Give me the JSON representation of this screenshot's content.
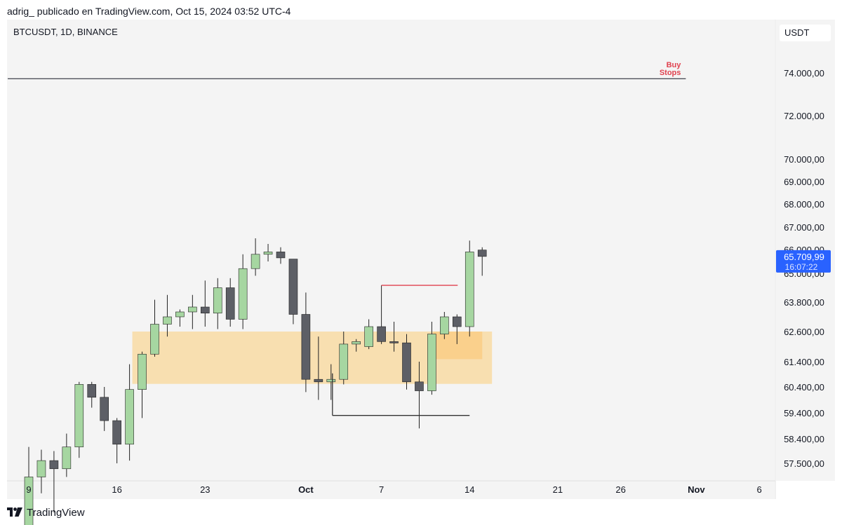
{
  "header": {
    "caption": "adrig_ publicado en TradingView.com, Oct 15, 2024 03:52 UTC-4"
  },
  "footer": {
    "brand": "TradingView",
    "logo": "tradingview-logo"
  },
  "chart_data": {
    "type": "candlestick",
    "symbol": "BTCUSDT, 1D, BINANCE",
    "currency": "USDT",
    "colors": {
      "up": "#a6d6a1",
      "down": "#5d5f66",
      "zone": "#f9d89a",
      "zone_inner": "#fbc97e",
      "price_badge": "#2962ff",
      "buy_stops": "#e0424f"
    },
    "y_ticks": [
      {
        "value": 74000,
        "label": "74.000,00"
      },
      {
        "value": 72000,
        "label": "72.000,00"
      },
      {
        "value": 70000,
        "label": "70.000,00"
      },
      {
        "value": 69000,
        "label": "69.000,00"
      },
      {
        "value": 68000,
        "label": "68.000,00"
      },
      {
        "value": 67000,
        "label": "67.000,00"
      },
      {
        "value": 66000,
        "label": "66.000,00"
      },
      {
        "value": 65000,
        "label": "65.000,00"
      },
      {
        "value": 63800,
        "label": "63.800,00"
      },
      {
        "value": 62600,
        "label": "62.600,00"
      },
      {
        "value": 61400,
        "label": "61.400,00"
      },
      {
        "value": 60400,
        "label": "60.400,00"
      },
      {
        "value": 59400,
        "label": "59.400,00"
      },
      {
        "value": 58400,
        "label": "58.400,00"
      },
      {
        "value": 57500,
        "label": "57.500,00"
      }
    ],
    "x_ticks": [
      {
        "date": "2024-09-09",
        "label": "9",
        "bold": false
      },
      {
        "date": "2024-09-16",
        "label": "16",
        "bold": false
      },
      {
        "date": "2024-09-23",
        "label": "23",
        "bold": false
      },
      {
        "date": "2024-10-01",
        "label": "Oct",
        "bold": true
      },
      {
        "date": "2024-10-07",
        "label": "7",
        "bold": false
      },
      {
        "date": "2024-10-14",
        "label": "14",
        "bold": false
      },
      {
        "date": "2024-10-21",
        "label": "21",
        "bold": false
      },
      {
        "date": "2024-10-26",
        "label": "26",
        "bold": false
      },
      {
        "date": "2024-11-01",
        "label": "Nov",
        "bold": true
      },
      {
        "date": "2024-11-06",
        "label": "6",
        "bold": false
      }
    ],
    "candles": [
      {
        "date": "2024-09-09",
        "open": 54800,
        "high": 58100,
        "low": 54600,
        "close": 57000
      },
      {
        "date": "2024-09-10",
        "open": 57000,
        "high": 58000,
        "low": 56400,
        "close": 57600
      },
      {
        "date": "2024-09-11",
        "open": 57600,
        "high": 57950,
        "low": 55700,
        "close": 57300
      },
      {
        "date": "2024-09-12",
        "open": 57300,
        "high": 58600,
        "low": 57000,
        "close": 58100
      },
      {
        "date": "2024-09-13",
        "open": 58100,
        "high": 60600,
        "low": 57700,
        "close": 60500
      },
      {
        "date": "2024-09-14",
        "open": 60500,
        "high": 60600,
        "low": 59600,
        "close": 60000
      },
      {
        "date": "2024-09-15",
        "open": 60000,
        "high": 60400,
        "low": 58700,
        "close": 59100
      },
      {
        "date": "2024-09-16",
        "open": 59100,
        "high": 59200,
        "low": 57500,
        "close": 58200
      },
      {
        "date": "2024-09-17",
        "open": 58200,
        "high": 61300,
        "low": 57600,
        "close": 60300
      },
      {
        "date": "2024-09-18",
        "open": 60300,
        "high": 61800,
        "low": 59200,
        "close": 61700
      },
      {
        "date": "2024-09-19",
        "open": 61700,
        "high": 63900,
        "low": 61600,
        "close": 62900
      },
      {
        "date": "2024-09-20",
        "open": 62900,
        "high": 64100,
        "low": 62400,
        "close": 63200
      },
      {
        "date": "2024-09-21",
        "open": 63200,
        "high": 63500,
        "low": 62800,
        "close": 63400
      },
      {
        "date": "2024-09-22",
        "open": 63400,
        "high": 64100,
        "low": 62700,
        "close": 63600
      },
      {
        "date": "2024-09-23",
        "open": 63600,
        "high": 64700,
        "low": 62800,
        "close": 63350
      },
      {
        "date": "2024-09-24",
        "open": 63350,
        "high": 64800,
        "low": 62700,
        "close": 64400
      },
      {
        "date": "2024-09-25",
        "open": 64400,
        "high": 64800,
        "low": 62800,
        "close": 63100
      },
      {
        "date": "2024-09-26",
        "open": 63100,
        "high": 65800,
        "low": 62700,
        "close": 65200
      },
      {
        "date": "2024-09-27",
        "open": 65200,
        "high": 66500,
        "low": 64900,
        "close": 65800
      },
      {
        "date": "2024-09-28",
        "open": 65800,
        "high": 66250,
        "low": 65500,
        "close": 65900
      },
      {
        "date": "2024-09-29",
        "open": 65900,
        "high": 66100,
        "low": 65400,
        "close": 65650
      },
      {
        "date": "2024-09-30",
        "open": 65600,
        "high": 65600,
        "low": 62900,
        "close": 63300
      },
      {
        "date": "2024-10-01",
        "open": 63300,
        "high": 64200,
        "low": 60200,
        "close": 60700
      },
      {
        "date": "2024-10-02",
        "open": 60700,
        "high": 62400,
        "low": 59900,
        "close": 60600
      },
      {
        "date": "2024-10-03",
        "open": 60600,
        "high": 61300,
        "low": 59900,
        "close": 60700
      },
      {
        "date": "2024-10-04",
        "open": 60700,
        "high": 62600,
        "low": 60500,
        "close": 62100
      },
      {
        "date": "2024-10-05",
        "open": 62100,
        "high": 62300,
        "low": 61800,
        "close": 62200
      },
      {
        "date": "2024-10-06",
        "open": 62000,
        "high": 63100,
        "low": 61900,
        "close": 62800
      },
      {
        "date": "2024-10-07",
        "open": 62800,
        "high": 64500,
        "low": 62100,
        "close": 62200
      },
      {
        "date": "2024-10-08",
        "open": 62200,
        "high": 63000,
        "low": 61800,
        "close": 62150
      },
      {
        "date": "2024-10-09",
        "open": 62150,
        "high": 62500,
        "low": 60300,
        "close": 60600
      },
      {
        "date": "2024-10-10",
        "open": 60600,
        "high": 61400,
        "low": 58800,
        "close": 60250
      },
      {
        "date": "2024-10-11",
        "open": 60250,
        "high": 63000,
        "low": 60100,
        "close": 62500
      },
      {
        "date": "2024-10-12",
        "open": 62500,
        "high": 63400,
        "low": 62300,
        "close": 63200
      },
      {
        "date": "2024-10-13",
        "open": 63200,
        "high": 63300,
        "low": 62100,
        "close": 62800
      },
      {
        "date": "2024-10-14",
        "open": 62800,
        "high": 66400,
        "low": 62400,
        "close": 65900
      },
      {
        "date": "2024-10-15",
        "open": 65980,
        "high": 66100,
        "low": 64900,
        "close": 65709.99
      }
    ],
    "last_price": {
      "value": 65709.99,
      "label": "65.709,99",
      "countdown": "16:07:22"
    },
    "annotations": {
      "buy_stops": {
        "price": 73730,
        "label_line1": "Buy",
        "label_line2": "Stops",
        "from": "2024-09-09",
        "to": "2024-10-31"
      },
      "demand_zone": {
        "top": 62600,
        "bottom": 60520,
        "from": "2024-09-18",
        "to": "2024-10-15"
      },
      "inner_zone": {
        "top": 62600,
        "bottom": 61500,
        "from": "2024-10-11",
        "to": "2024-10-14"
      },
      "red_level": {
        "price": 64500,
        "from": "2024-10-07",
        "to": "2024-10-13"
      },
      "black_level": {
        "price": 59300,
        "from": "2024-10-03",
        "to": "2024-10-14"
      }
    }
  }
}
